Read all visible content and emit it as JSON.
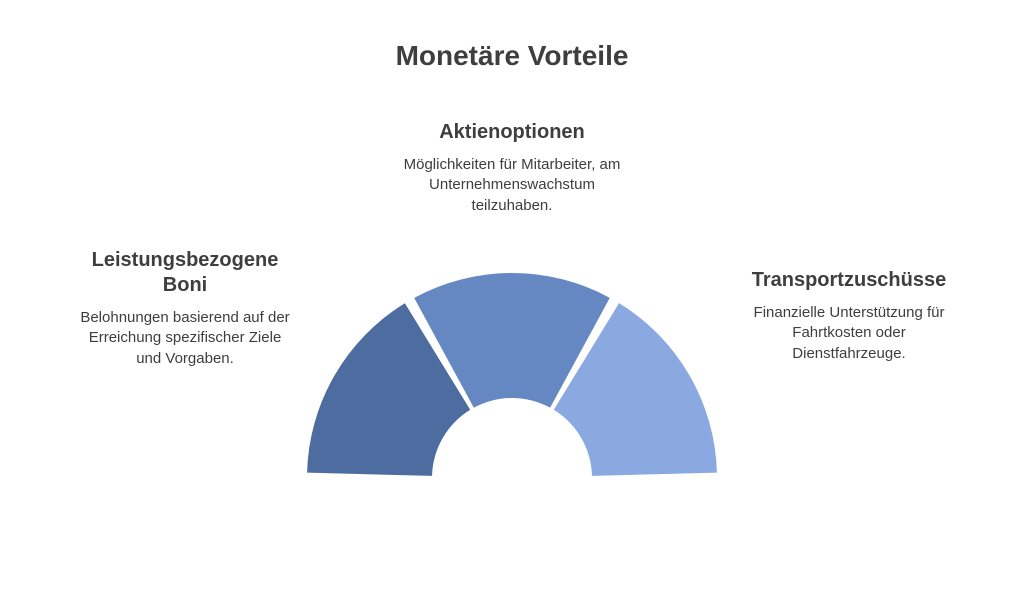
{
  "title": "Monetäre Vorteile",
  "chart": {
    "type": "semi-donut",
    "outer_radius": 205,
    "inner_radius": 80,
    "gap_deg": 3,
    "background_color": "#ffffff",
    "segments": [
      {
        "label": "Leistungsbezogene Boni",
        "color": "#4d6ca0",
        "fraction": 0.3333
      },
      {
        "label": "Aktienoptionen",
        "color": "#6688c2",
        "fraction": 0.3333
      },
      {
        "label": "Transportzuschüsse",
        "color": "#89a9e0",
        "fraction": 0.3334
      }
    ]
  },
  "labels": {
    "left": {
      "title": "Leistungsbezogene Boni",
      "desc": "Belohnungen basierend auf der Erreichung spezifischer Ziele und Vorgaben."
    },
    "top": {
      "title": "Aktienoptionen",
      "desc": "Möglichkeiten für Mitarbeiter, am Unternehmenswachstum teilzuhaben."
    },
    "right": {
      "title": "Transportzuschüsse",
      "desc": "Finanzielle Unterstützung für Fahrtkosten oder Dienstfahrzeuge."
    }
  },
  "typography": {
    "title_fontsize": 28,
    "label_title_fontsize": 20,
    "label_desc_fontsize": 15,
    "text_color": "#3e3e3e"
  }
}
